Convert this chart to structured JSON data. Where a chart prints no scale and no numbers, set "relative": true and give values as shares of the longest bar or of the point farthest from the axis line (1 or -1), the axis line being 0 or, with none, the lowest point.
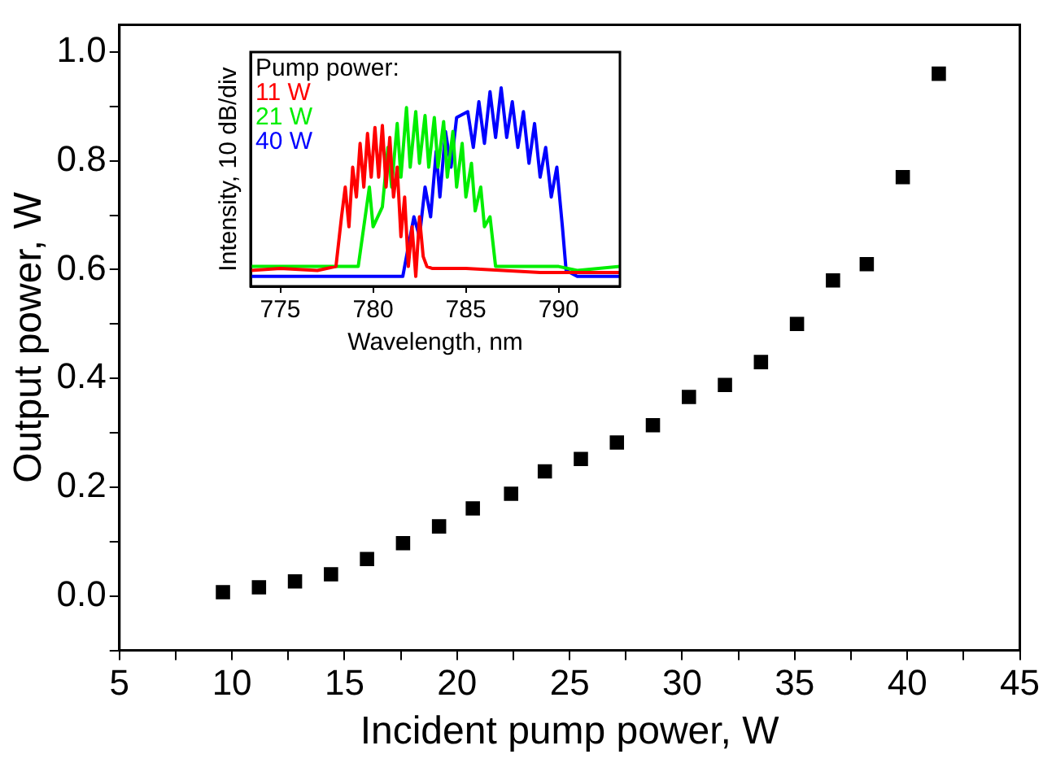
{
  "chart_data": [
    {
      "type": "scatter",
      "xlabel": "Incident pump power, W",
      "ylabel": "Output power, W",
      "marker": "square",
      "color": "#000000",
      "legend": false,
      "grid": false,
      "x": [
        9.6,
        11.2,
        12.8,
        14.4,
        16.0,
        17.6,
        19.2,
        20.7,
        22.4,
        23.9,
        25.5,
        27.1,
        28.7,
        30.3,
        31.9,
        33.5,
        35.1,
        36.7,
        38.2,
        39.8,
        41.4
      ],
      "values": [
        0.007,
        0.016,
        0.027,
        0.04,
        0.068,
        0.097,
        0.128,
        0.161,
        0.188,
        0.229,
        0.252,
        0.282,
        0.314,
        0.366,
        0.388,
        0.43,
        0.5,
        0.58,
        0.61,
        0.77,
        0.96
      ],
      "xlim": [
        5,
        45
      ],
      "xticks": [
        5,
        {
          "value": 7.5,
          "label": null
        },
        10,
        {
          "value": 12.5,
          "label": null
        },
        15,
        {
          "value": 17.5,
          "label": null
        },
        20,
        {
          "value": 22.5,
          "label": null
        },
        25,
        {
          "value": 27.5,
          "label": null
        },
        30,
        {
          "value": 32.5,
          "label": null
        },
        35,
        {
          "value": 37.5,
          "label": null
        },
        40,
        {
          "value": 42.5,
          "label": null
        },
        45
      ],
      "ylim": [
        -0.1,
        1.05
      ],
      "yticks": [
        {
          "value": -0.1,
          "label": null
        },
        {
          "value": 0,
          "label": "0.0"
        },
        {
          "value": 0.1,
          "label": null
        },
        0.2,
        {
          "value": 0.3,
          "label": null
        },
        0.4,
        {
          "value": 0.5,
          "label": null
        },
        0.6,
        {
          "value": 0.7,
          "label": null
        },
        0.8,
        {
          "value": 0.9,
          "label": null
        },
        {
          "value": 1,
          "label": "1.0"
        }
      ]
    },
    {
      "type": "line",
      "relative": true,
      "xlabel": "Wavelength, nm",
      "ylabel": "Intensity, 10 dB/div",
      "legend": "top left",
      "legend_title": "Pump power:",
      "tick_labels": "x",
      "grid": false,
      "xlim": [
        773.4,
        793.3
      ],
      "xticks": [
        775,
        780,
        785,
        790
      ],
      "series": [
        {
          "name": "11 W",
          "color": "#ff0000",
          "x": [
            773.4,
            775,
            777,
            778.0,
            778.3,
            778.5,
            778.7,
            778.9,
            779.1,
            779.3,
            779.5,
            779.7,
            779.9,
            780.1,
            780.3,
            780.5,
            780.7,
            780.9,
            781.1,
            781.3,
            781.5,
            781.7,
            781.9,
            782.1,
            782.3,
            782.5,
            782.7,
            782.9,
            783.2,
            785,
            787,
            789,
            791,
            793.3
          ],
          "values": [
            0.08,
            0.09,
            0.08,
            0.1,
            0.35,
            0.5,
            0.3,
            0.6,
            0.45,
            0.72,
            0.5,
            0.77,
            0.55,
            0.8,
            0.55,
            0.81,
            0.5,
            0.75,
            0.45,
            0.6,
            0.25,
            0.45,
            0.1,
            0.3,
            0.05,
            0.35,
            0.15,
            0.1,
            0.09,
            0.09,
            0.08,
            0.07,
            0.07,
            0.07
          ]
        },
        {
          "name": "21 W",
          "color": "#00ee00",
          "x": [
            773.4,
            776,
            778,
            779.2,
            779.5,
            779.8,
            780.0,
            780.3,
            780.5,
            780.8,
            781.0,
            781.3,
            781.5,
            781.8,
            782.0,
            782.3,
            782.5,
            782.8,
            783.0,
            783.3,
            783.5,
            783.8,
            784.0,
            784.3,
            784.5,
            784.8,
            785.0,
            785.3,
            785.5,
            785.8,
            786.0,
            786.3,
            786.6,
            788,
            790,
            791,
            793.3
          ],
          "values": [
            0.1,
            0.1,
            0.1,
            0.1,
            0.3,
            0.5,
            0.3,
            null,
            0.4,
            0.7,
            0.5,
            0.82,
            0.55,
            0.9,
            0.6,
            0.88,
            0.62,
            0.86,
            0.6,
            0.85,
            0.6,
            0.83,
            0.55,
            0.78,
            0.5,
            0.72,
            0.45,
            0.62,
            0.38,
            0.5,
            0.3,
            0.35,
            0.1,
            0.1,
            0.1,
            0.08,
            0.1
          ]
        },
        {
          "name": "40 W",
          "color": "#0000ff",
          "x": [
            773.4,
            776,
            779,
            781,
            781.6,
            781.9,
            782.2,
            782.5,
            782.8,
            783.1,
            783.4,
            783.6,
            783.9,
            784.2,
            784.5,
            784.8,
            785.1,
            785.4,
            785.7,
            786.0,
            786.3,
            786.6,
            786.9,
            787.2,
            787.5,
            787.8,
            788.1,
            788.4,
            788.7,
            789.0,
            789.3,
            789.6,
            789.9,
            790.2,
            790.4,
            791,
            793.3
          ],
          "values": [
            0.05,
            0.05,
            0.05,
            0.05,
            0.05,
            0.2,
            0.35,
            0.25,
            0.5,
            0.35,
            0.68,
            0.45,
            0.78,
            0.6,
            0.85,
            null,
            0.88,
            0.7,
            0.93,
            0.72,
            0.98,
            0.75,
            1.0,
            0.75,
            0.93,
            0.7,
            0.88,
            0.62,
            0.82,
            0.55,
            0.7,
            0.45,
            0.6,
            0.3,
            0.08,
            0.05,
            0.05
          ]
        }
      ]
    }
  ]
}
